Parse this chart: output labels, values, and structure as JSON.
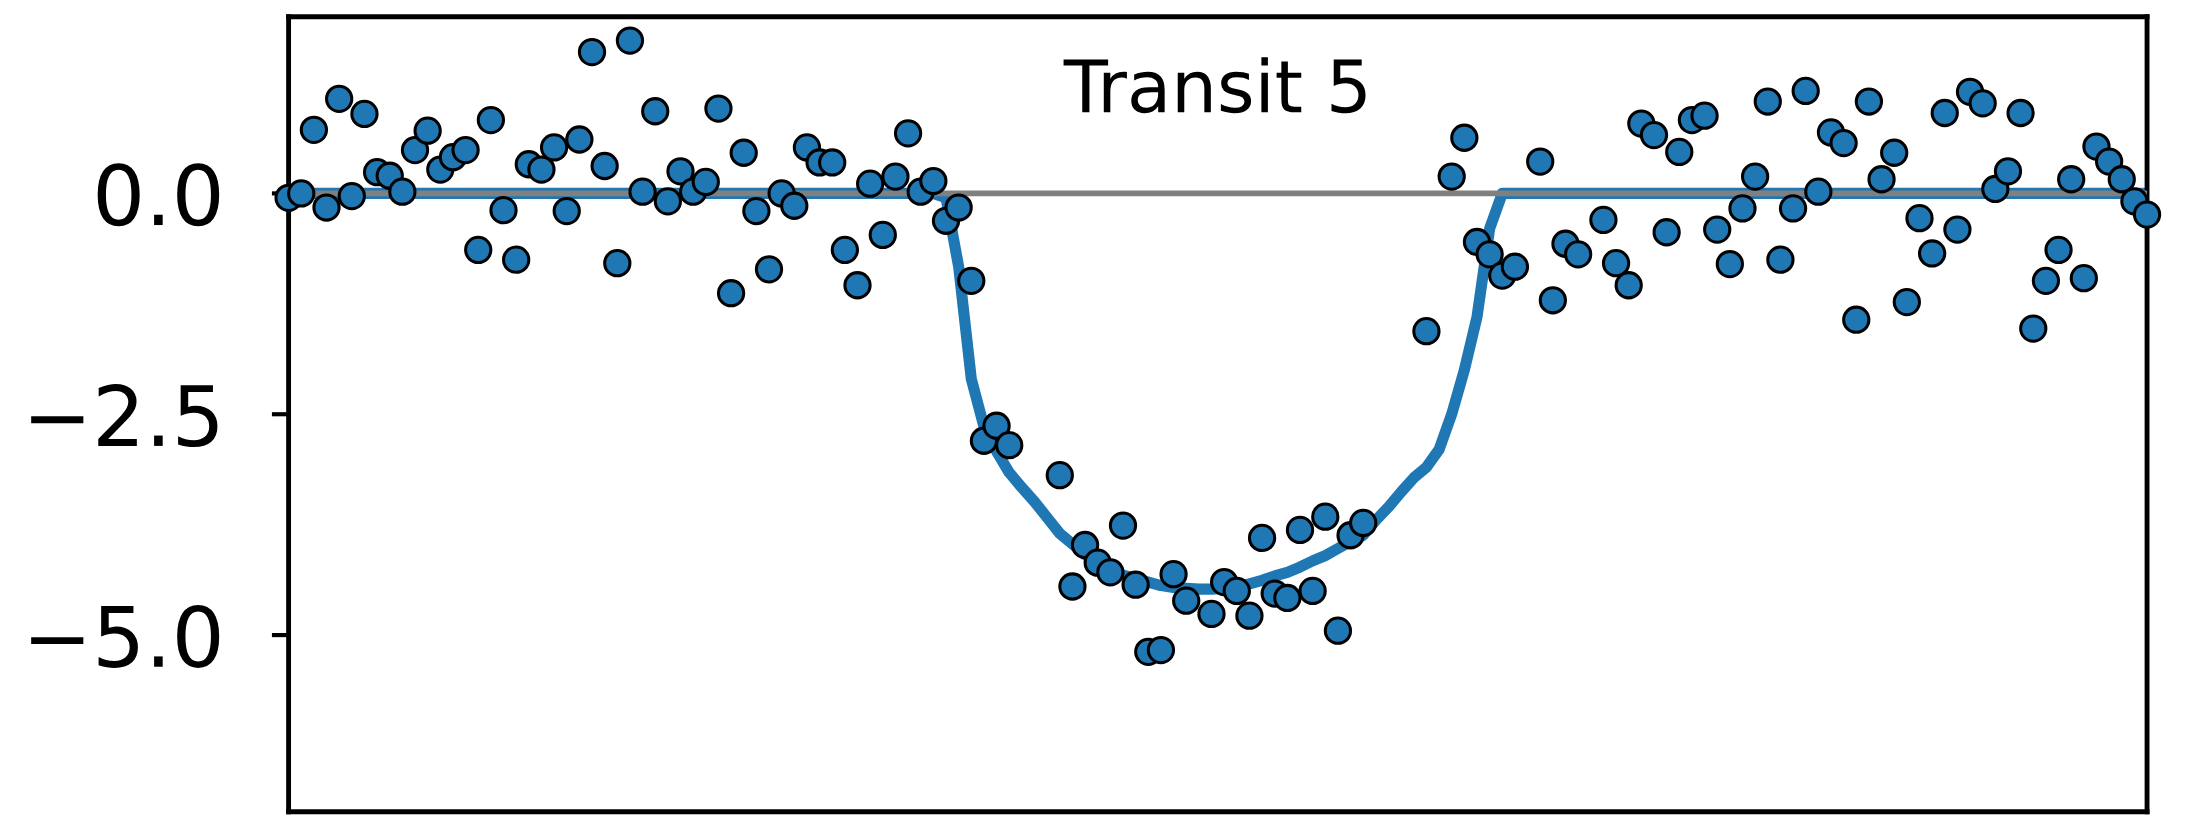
{
  "chart_data": {
    "type": "scatter",
    "title": "Transit 5",
    "categories": [
      null,
      null,
      null,
      null,
      null,
      null,
      null,
      null,
      null,
      null,
      null,
      null,
      null,
      null,
      null,
      null,
      null,
      null,
      null,
      null,
      null,
      null,
      null,
      null,
      null,
      null,
      null,
      null,
      null,
      null,
      null,
      null,
      null,
      null,
      null,
      null,
      null,
      null,
      null,
      null,
      null,
      null,
      null,
      null,
      null,
      null,
      null,
      null,
      null,
      null,
      null,
      null,
      null,
      null,
      null,
      null,
      null,
      null,
      null,
      null,
      null,
      null,
      null,
      null,
      null,
      null,
      null,
      null,
      null,
      null,
      null,
      null,
      null,
      null,
      null,
      null,
      null,
      null,
      null,
      null,
      null,
      null,
      null,
      null,
      null,
      null,
      null,
      null,
      null,
      null,
      null,
      null,
      null,
      null,
      null,
      null,
      null,
      null,
      null,
      null,
      null,
      null,
      null,
      null,
      null,
      null,
      null,
      null,
      null,
      null,
      null,
      null,
      null,
      null,
      null,
      null,
      null,
      null,
      null,
      null,
      null,
      null,
      null,
      null,
      null,
      null,
      null,
      null,
      null,
      null,
      null,
      null,
      null,
      null,
      null,
      null,
      null,
      null,
      null,
      null,
      null,
      null,
      null,
      null,
      null,
      null,
      null,
      null
    ],
    "series": [
      {
        "type": "line",
        "color": "#1f77b4",
        "marker": "none",
        "values": [
          0,
          0,
          0,
          0,
          0,
          0,
          0,
          0,
          0,
          0,
          0,
          0,
          0,
          0,
          0,
          0,
          0,
          0,
          0,
          0,
          0,
          0,
          0,
          0,
          0,
          0,
          0,
          0,
          0,
          0,
          0,
          0,
          0,
          0,
          0,
          0,
          0,
          0,
          0,
          0,
          0,
          0,
          0,
          0,
          0,
          0,
          0,
          0,
          0,
          0,
          0,
          0,
          -0.05,
          -0.83,
          -2.1,
          -2.64,
          -2.92,
          -3.16,
          -3.33,
          -3.49,
          -3.67,
          -3.85,
          -3.97,
          -4.09,
          -4.17,
          -4.25,
          -4.32,
          -4.36,
          -4.4,
          -4.44,
          -4.46,
          -4.47,
          -4.48,
          -4.48,
          -4.47,
          -4.45,
          -4.42,
          -4.38,
          -4.33,
          -4.29,
          -4.23,
          -4.16,
          -4.1,
          -4.02,
          -3.94,
          -3.87,
          -3.7,
          -3.55,
          -3.38,
          -3.22,
          -3.1,
          -2.9,
          -2.5,
          -2.0,
          -1.4,
          -0.4,
          0,
          0,
          0,
          0,
          0,
          0,
          0,
          0,
          0,
          0,
          0,
          0,
          0,
          0,
          0,
          0,
          0,
          0,
          0,
          0,
          0,
          0,
          0,
          0,
          0,
          0,
          0,
          0,
          0,
          0,
          0,
          0,
          0,
          0,
          0,
          0,
          0,
          0,
          0,
          0,
          0,
          0,
          0,
          0,
          0,
          0,
          0,
          0,
          0,
          0,
          0,
          0
        ]
      },
      {
        "color": "#1f77b4",
        "marker": "circle",
        "values": [
          -0.05,
          0.0,
          0.72,
          -0.16,
          1.07,
          -0.03,
          0.9,
          0.24,
          0.2,
          0.02,
          0.49,
          0.71,
          0.27,
          0.41,
          0.49,
          -0.64,
          0.83,
          -0.19,
          -0.75,
          0.33,
          0.27,
          0.52,
          -0.2,
          0.61,
          1.6,
          0.31,
          -0.79,
          1.73,
          0.02,
          0.93,
          -0.09,
          0.25,
          0.02,
          0.13,
          0.96,
          -1.13,
          0.46,
          -0.2,
          -0.86,
          0.0,
          -0.14,
          0.52,
          0.35,
          0.35,
          -0.64,
          -1.04,
          0.11,
          -0.47,
          0.19,
          0.68,
          0.02,
          0.14,
          -0.31,
          -0.16,
          -0.99,
          -2.8,
          -2.63,
          -2.85,
          null,
          null,
          null,
          -3.19,
          -4.45,
          -3.98,
          -4.18,
          -4.29,
          -3.76,
          -4.43,
          -5.19,
          -5.17,
          -4.31,
          -4.61,
          null,
          -4.76,
          -4.4,
          -4.5,
          -4.78,
          -3.9,
          -4.53,
          -4.58,
          -3.81,
          -4.5,
          -3.66,
          -4.95,
          -3.87,
          -3.73,
          null,
          null,
          null,
          null,
          -1.56,
          null,
          0.19,
          0.63,
          -0.55,
          -0.69,
          -0.93,
          -0.83,
          null,
          0.36,
          -1.21,
          -0.57,
          -0.69,
          null,
          -0.3,
          -0.79,
          -1.04,
          0.79,
          0.66,
          -0.44,
          0.47,
          0.83,
          0.88,
          -0.41,
          -0.8,
          -0.17,
          0.19,
          1.04,
          -0.75,
          -0.17,
          1.16,
          0.02,
          0.69,
          0.57,
          -1.43,
          1.04,
          0.16,
          0.46,
          -1.23,
          -0.28,
          -0.68,
          0.91,
          -0.41,
          1.15,
          1.02,
          0.05,
          0.25,
          0.91,
          -1.53,
          -0.99,
          -0.64,
          0.16,
          -0.96,
          0.53,
          0.36,
          0.16,
          -0.09,
          -0.24
        ]
      }
    ],
    "ref_lines": [
      {
        "axis": "y",
        "value": 0,
        "color": "#808080"
      }
    ],
    "ylim": [
      -7,
      2
    ],
    "yticks": [
      {
        "value": 0,
        "label": "0.0"
      },
      {
        "value": -2.5,
        "label": "−2.5"
      },
      {
        "value": -5.0,
        "label": "−5.0"
      }
    ],
    "tick_labels": "y",
    "grid": false,
    "legend": false
  }
}
